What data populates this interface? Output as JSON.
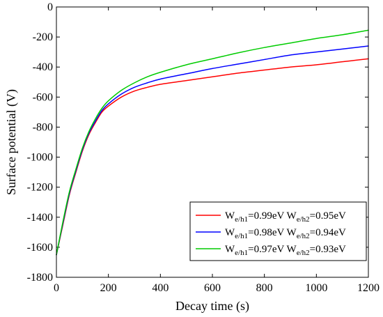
{
  "chart_data": {
    "type": "line",
    "xlabel": "Decay time (s)",
    "ylabel": "Surface potential (V)",
    "xlim": [
      0,
      1200
    ],
    "ylim": [
      -1800,
      0
    ],
    "xticks": [
      0,
      200,
      400,
      600,
      800,
      1000,
      1200
    ],
    "yticks": [
      0,
      -200,
      -400,
      -600,
      -800,
      -1000,
      -1200,
      -1400,
      -1600,
      -1800
    ],
    "grid": false,
    "legend_position": "bottom-right",
    "x": [
      0,
      25,
      50,
      75,
      100,
      125,
      150,
      175,
      200,
      250,
      300,
      350,
      400,
      500,
      600,
      700,
      800,
      900,
      1000,
      1100,
      1200
    ],
    "series": [
      {
        "name": "W_e/h1=0.99eV W_e/h2=0.95eV",
        "color": "#ff0000",
        "legend_parts": [
          "W",
          "e/h1",
          "=0.99eV W",
          "e/h2",
          "=0.95eV"
        ],
        "values": [
          -1650,
          -1450,
          -1250,
          -1100,
          -960,
          -850,
          -770,
          -700,
          -660,
          -600,
          -560,
          -535,
          -515,
          -490,
          -465,
          -440,
          -420,
          -400,
          -385,
          -365,
          -345
        ]
      },
      {
        "name": "W_e/h1=0.98eV W_e/h2=0.94eV",
        "color": "#0000ff",
        "legend_parts": [
          "W",
          "e/h1",
          "=0.98eV W",
          "e/h2",
          "=0.94eV"
        ],
        "values": [
          -1650,
          -1440,
          -1240,
          -1090,
          -950,
          -840,
          -760,
          -690,
          -645,
          -580,
          -535,
          -505,
          -480,
          -445,
          -410,
          -380,
          -350,
          -320,
          -300,
          -280,
          -260
        ]
      },
      {
        "name": "W_e/h1=0.97eV W_e/h2=0.93eV",
        "color": "#00cc00",
        "legend_parts": [
          "W",
          "e/h1",
          "=0.97eV W",
          "e/h2",
          "=0.93eV"
        ],
        "values": [
          -1650,
          -1430,
          -1230,
          -1080,
          -940,
          -830,
          -745,
          -675,
          -625,
          -555,
          -505,
          -465,
          -435,
          -385,
          -345,
          -305,
          -270,
          -240,
          -210,
          -185,
          -155
        ]
      }
    ]
  }
}
